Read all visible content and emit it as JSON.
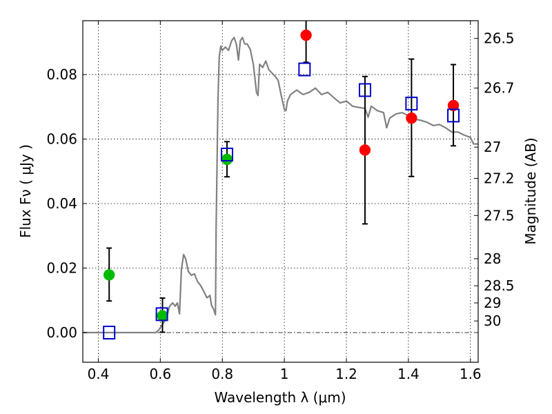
{
  "chart_data": {
    "type": "scatter",
    "xlabel": "Wavelength  λ (μm)",
    "ylabel": "Flux  Fν  ( μJy )",
    "ylabel_right": "Magnitude (AB)",
    "xlim": [
      0.35,
      1.625
    ],
    "ylim": [
      -0.0092,
      0.0967
    ],
    "grid": true,
    "x_ticks": [
      0.4,
      0.6,
      0.8,
      1.0,
      1.2,
      1.4,
      1.6
    ],
    "x_tick_labels": [
      "0.4",
      "0.6",
      "0.8",
      "1",
      "1.2",
      "1.4",
      "1.6"
    ],
    "y_ticks": [
      0.0,
      0.02,
      0.04,
      0.06,
      0.08
    ],
    "y_tick_labels": [
      "0.00",
      "0.02",
      "0.04",
      "0.06",
      "0.08"
    ],
    "right_ticks": [
      {
        "flux": 0.0912,
        "label": "26.5"
      },
      {
        "flux": 0.0758,
        "label": "26.7"
      },
      {
        "flux": 0.0575,
        "label": "27"
      },
      {
        "flux": 0.0478,
        "label": "27.2"
      },
      {
        "flux": 0.0363,
        "label": "27.5"
      },
      {
        "flux": 0.0229,
        "label": "28"
      },
      {
        "flux": 0.0145,
        "label": "28.5"
      },
      {
        "flux": 0.0092,
        "label": "29"
      },
      {
        "flux": 0.0036,
        "label": "30"
      }
    ],
    "zero_line": 0.0,
    "colors": {
      "model": "#808080",
      "red": "#ff0000",
      "green": "#00bb00",
      "square": "#0000cc",
      "errorbar": "#000000"
    },
    "series": [
      {
        "kind": "line",
        "color": "#808080",
        "points": [
          [
            0.35,
            0.0
          ],
          [
            0.55,
            0.0
          ],
          [
            0.585,
            0.0
          ],
          [
            0.595,
            0.0008
          ],
          [
            0.605,
            0.0022
          ],
          [
            0.62,
            0.0045
          ],
          [
            0.63,
            0.0082
          ],
          [
            0.64,
            0.0092
          ],
          [
            0.648,
            0.0082
          ],
          [
            0.655,
            0.0092
          ],
          [
            0.662,
            0.0058
          ],
          [
            0.668,
            0.0195
          ],
          [
            0.675,
            0.0242
          ],
          [
            0.682,
            0.0228
          ],
          [
            0.69,
            0.019
          ],
          [
            0.7,
            0.0178
          ],
          [
            0.71,
            0.0182
          ],
          [
            0.72,
            0.0158
          ],
          [
            0.73,
            0.0146
          ],
          [
            0.74,
            0.0128
          ],
          [
            0.75,
            0.0108
          ],
          [
            0.76,
            0.0115
          ],
          [
            0.765,
            0.0085
          ],
          [
            0.772,
            0.0072
          ],
          [
            0.778,
            0.0055
          ],
          [
            0.78,
            0.032
          ],
          [
            0.786,
            0.072
          ],
          [
            0.79,
            0.0855
          ],
          [
            0.795,
            0.0888
          ],
          [
            0.8,
            0.0875
          ],
          [
            0.81,
            0.0885
          ],
          [
            0.82,
            0.0875
          ],
          [
            0.83,
            0.0905
          ],
          [
            0.838,
            0.0915
          ],
          [
            0.845,
            0.0895
          ],
          [
            0.852,
            0.0845
          ],
          [
            0.858,
            0.0905
          ],
          [
            0.865,
            0.0915
          ],
          [
            0.872,
            0.0895
          ],
          [
            0.88,
            0.0895
          ],
          [
            0.89,
            0.0878
          ],
          [
            0.895,
            0.0855
          ],
          [
            0.9,
            0.0832
          ],
          [
            0.91,
            0.0745
          ],
          [
            0.915,
            0.0735
          ],
          [
            0.92,
            0.0832
          ],
          [
            0.93,
            0.0822
          ],
          [
            0.94,
            0.0842
          ],
          [
            0.95,
            0.0815
          ],
          [
            0.96,
            0.0805
          ],
          [
            0.97,
            0.0795
          ],
          [
            0.98,
            0.0782
          ],
          [
            0.99,
            0.0735
          ],
          [
            1.0,
            0.0692
          ],
          [
            1.005,
            0.0688
          ],
          [
            1.01,
            0.0718
          ],
          [
            1.02,
            0.0738
          ],
          [
            1.04,
            0.0752
          ],
          [
            1.06,
            0.0738
          ],
          [
            1.08,
            0.0745
          ],
          [
            1.1,
            0.0758
          ],
          [
            1.12,
            0.0738
          ],
          [
            1.14,
            0.0745
          ],
          [
            1.16,
            0.0728
          ],
          [
            1.18,
            0.0712
          ],
          [
            1.2,
            0.0718
          ],
          [
            1.22,
            0.0702
          ],
          [
            1.24,
            0.0698
          ],
          [
            1.26,
            0.0695
          ],
          [
            1.27,
            0.0668
          ],
          [
            1.28,
            0.0702
          ],
          [
            1.3,
            0.0688
          ],
          [
            1.32,
            0.0682
          ],
          [
            1.33,
            0.0635
          ],
          [
            1.34,
            0.0665
          ],
          [
            1.36,
            0.0678
          ],
          [
            1.38,
            0.0682
          ],
          [
            1.4,
            0.0672
          ],
          [
            1.42,
            0.0662
          ],
          [
            1.44,
            0.0658
          ],
          [
            1.46,
            0.0652
          ],
          [
            1.48,
            0.0642
          ],
          [
            1.5,
            0.0645
          ],
          [
            1.52,
            0.0635
          ],
          [
            1.54,
            0.0622
          ],
          [
            1.56,
            0.0622
          ],
          [
            1.58,
            0.0612
          ],
          [
            1.6,
            0.0605
          ],
          [
            1.61,
            0.0585
          ],
          [
            1.625,
            0.0585
          ]
        ]
      },
      {
        "kind": "errorbar",
        "marker": "circle",
        "color": "#00bb00",
        "points": [
          {
            "x": 0.435,
            "y": 0.0179,
            "lo": 0.0098,
            "hi": 0.0262
          },
          {
            "x": 0.607,
            "y": 0.0052,
            "lo": 0.0001,
            "hi": 0.0107
          },
          {
            "x": 0.815,
            "y": 0.0537,
            "lo": 0.0483,
            "hi": 0.0592
          }
        ]
      },
      {
        "kind": "errorbar",
        "marker": "circle",
        "color": "#ff0000",
        "points": [
          {
            "x": 1.07,
            "y": 0.0922,
            "lo": 0.0838,
            "hi": 0.0967
          },
          {
            "x": 1.26,
            "y": 0.0566,
            "lo": 0.0337,
            "hi": 0.0794
          },
          {
            "x": 1.41,
            "y": 0.0665,
            "lo": 0.0484,
            "hi": 0.0848
          },
          {
            "x": 1.545,
            "y": 0.0704,
            "lo": 0.0579,
            "hi": 0.0831
          }
        ]
      },
      {
        "kind": "points",
        "marker": "square",
        "color": "#0000cc",
        "points": [
          {
            "x": 0.435,
            "y": 0.0
          },
          {
            "x": 0.605,
            "y": 0.0057
          },
          {
            "x": 0.815,
            "y": 0.0552
          },
          {
            "x": 1.065,
            "y": 0.0816
          },
          {
            "x": 1.26,
            "y": 0.0752
          },
          {
            "x": 1.41,
            "y": 0.071
          },
          {
            "x": 1.545,
            "y": 0.0673
          }
        ]
      }
    ]
  }
}
